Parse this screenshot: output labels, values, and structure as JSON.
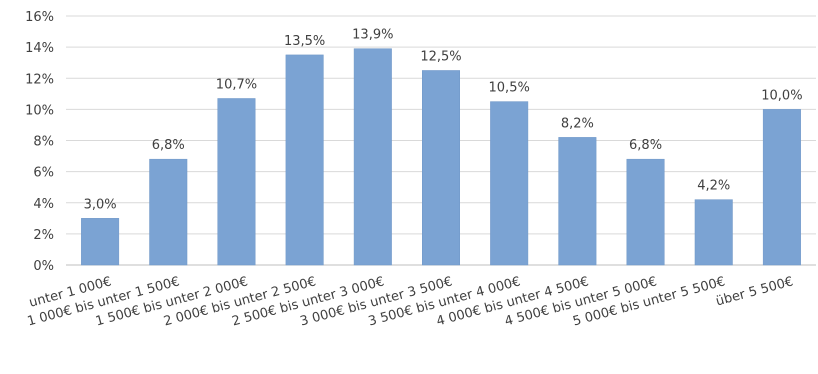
{
  "chart_data": {
    "type": "bar",
    "categories": [
      "unter 1 000€",
      "1 000€ bis unter 1 500€",
      "1 500€ bis unter 2 000€",
      "2 000€ bis unter 2 500€",
      "2 500€ bis unter 3 000€",
      "3 000€ bis unter 3 500€",
      "3 500€ bis unter 4 000€",
      "4 000€ bis unter 4 500€",
      "4 500€ bis unter 5 000€",
      "5 000€ bis unter 5 500€",
      "über 5 500€"
    ],
    "values": [
      3.0,
      6.8,
      10.7,
      13.5,
      13.9,
      12.5,
      10.5,
      8.2,
      6.8,
      4.2,
      10.0
    ],
    "value_labels": [
      "3,0%",
      "6,8%",
      "10,7%",
      "13,5%",
      "13,9%",
      "12,5%",
      "10,5%",
      "8,2%",
      "6,8%",
      "4,2%",
      "10,0%"
    ],
    "y_ticks": [
      0,
      2,
      4,
      6,
      8,
      10,
      12,
      14,
      16
    ],
    "y_tick_labels": [
      "0%",
      "2%",
      "4%",
      "6%",
      "8%",
      "10%",
      "12%",
      "14%",
      "16%"
    ],
    "ylim": [
      0,
      16
    ],
    "title": "",
    "xlabel": "",
    "ylabel": "",
    "grid": true,
    "legend": "none",
    "bar_color": "#7ba3d3",
    "bar_edge_color": "#6f97c7",
    "grid_color": "#d9d9d9",
    "axis_color": "#bfbfbf"
  }
}
